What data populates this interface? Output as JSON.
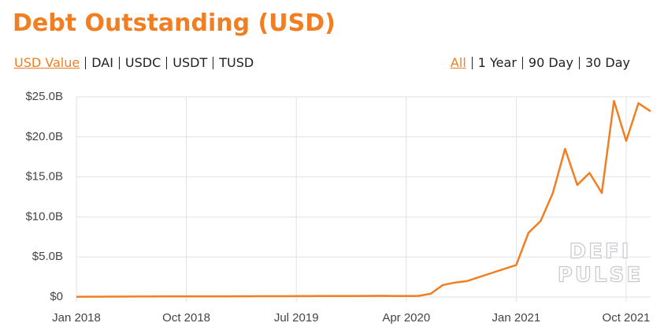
{
  "header": {
    "title": "Debt Outstanding (USD)",
    "asset_tabs": [
      "USD Value",
      "DAI",
      "USDC",
      "USDT",
      "TUSD"
    ],
    "range_tabs": [
      "All",
      "1 Year",
      "90 Day",
      "30 Day"
    ]
  },
  "chart_data": {
    "type": "line",
    "watermark": [
      "DEFI",
      "PULSE"
    ],
    "x": [
      "2018-01",
      "2018-02",
      "2018-03",
      "2018-04",
      "2018-05",
      "2018-06",
      "2018-07",
      "2018-08",
      "2018-09",
      "2018-10",
      "2018-11",
      "2018-12",
      "2019-01",
      "2019-02",
      "2019-03",
      "2019-04",
      "2019-05",
      "2019-06",
      "2019-07",
      "2019-08",
      "2019-09",
      "2019-10",
      "2019-11",
      "2019-12",
      "2020-01",
      "2020-02",
      "2020-03",
      "2020-04",
      "2020-05",
      "2020-06",
      "2020-07",
      "2020-08",
      "2020-09",
      "2020-10",
      "2020-11",
      "2020-12",
      "2021-01",
      "2021-02",
      "2021-03",
      "2021-04",
      "2021-05",
      "2021-06",
      "2021-07",
      "2021-08",
      "2021-09",
      "2021-10",
      "2021-11",
      "2021-12"
    ],
    "series": [
      {
        "name": "USD Value",
        "color": "#f07f23",
        "values": [
          0.03,
          0.04,
          0.04,
          0.05,
          0.05,
          0.06,
          0.06,
          0.07,
          0.07,
          0.07,
          0.08,
          0.08,
          0.08,
          0.09,
          0.09,
          0.1,
          0.1,
          0.1,
          0.11,
          0.11,
          0.12,
          0.12,
          0.13,
          0.13,
          0.14,
          0.15,
          0.12,
          0.12,
          0.14,
          0.4,
          1.5,
          1.8,
          2.0,
          2.5,
          3.0,
          3.5,
          4.0,
          8.0,
          9.5,
          13.0,
          18.5,
          14.0,
          15.5,
          13.0,
          24.5,
          19.5,
          24.2,
          23.2
        ]
      }
    ],
    "xlim": [
      "2018-01",
      "2021-12"
    ],
    "xticks": [
      {
        "value": "2018-01",
        "label": "Jan 2018"
      },
      {
        "value": "2018-10",
        "label": "Oct 2018"
      },
      {
        "value": "2019-07",
        "label": "Jul 2019"
      },
      {
        "value": "2020-04",
        "label": "Apr 2020"
      },
      {
        "value": "2021-01",
        "label": "Jan 2021"
      },
      {
        "value": "2021-10",
        "label": "Oct 2021"
      }
    ],
    "ylim": [
      0,
      25
    ],
    "yticks": [
      {
        "value": 0,
        "label": "$0"
      },
      {
        "value": 5,
        "label": "$5.0B"
      },
      {
        "value": 10,
        "label": "$10.0B"
      },
      {
        "value": 15,
        "label": "$15.0B"
      },
      {
        "value": 20,
        "label": "$20.0B"
      },
      {
        "value": 25,
        "label": "$25.0B"
      }
    ],
    "grid": true
  }
}
